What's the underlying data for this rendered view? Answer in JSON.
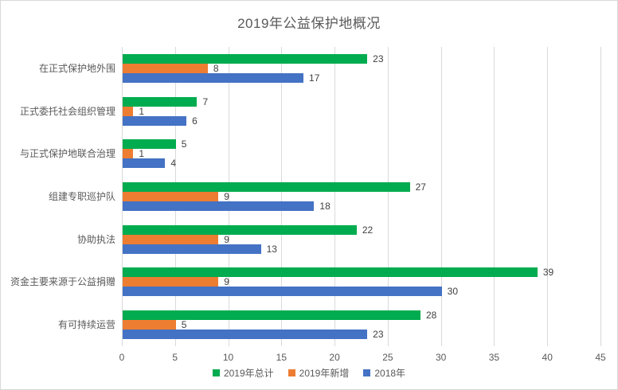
{
  "chart_data": {
    "type": "bar",
    "orientation": "horizontal",
    "title": "2019年公益保护地概况",
    "categories": [
      "在正式保护地外围",
      "正式委托社会组织管理",
      "与正式保护地联合治理",
      "组建专职巡护队",
      "协助执法",
      "资金主要来源于公益捐赠",
      "有可持续运营"
    ],
    "series": [
      {
        "name": "2019年总计",
        "color": "#00AC4F",
        "values": [
          23,
          7,
          5,
          27,
          22,
          39,
          28
        ]
      },
      {
        "name": "2019年新增",
        "color": "#ED7D31",
        "values": [
          8,
          1,
          1,
          9,
          9,
          9,
          5
        ]
      },
      {
        "name": "2018年",
        "color": "#4472C4",
        "values": [
          17,
          6,
          4,
          18,
          13,
          30,
          23
        ]
      }
    ],
    "xlim": [
      0,
      45
    ],
    "xticks": [
      0,
      5,
      10,
      15,
      20,
      25,
      30,
      35,
      40,
      45
    ],
    "grid": true,
    "data_labels": true,
    "legend_position": "bottom"
  },
  "colors": {
    "grid": "#d9d9d9",
    "border": "#d9d9d9",
    "title_text": "#595959",
    "axis_text": "#595959",
    "data_label_text": "#404040",
    "background": "#ffffff"
  }
}
